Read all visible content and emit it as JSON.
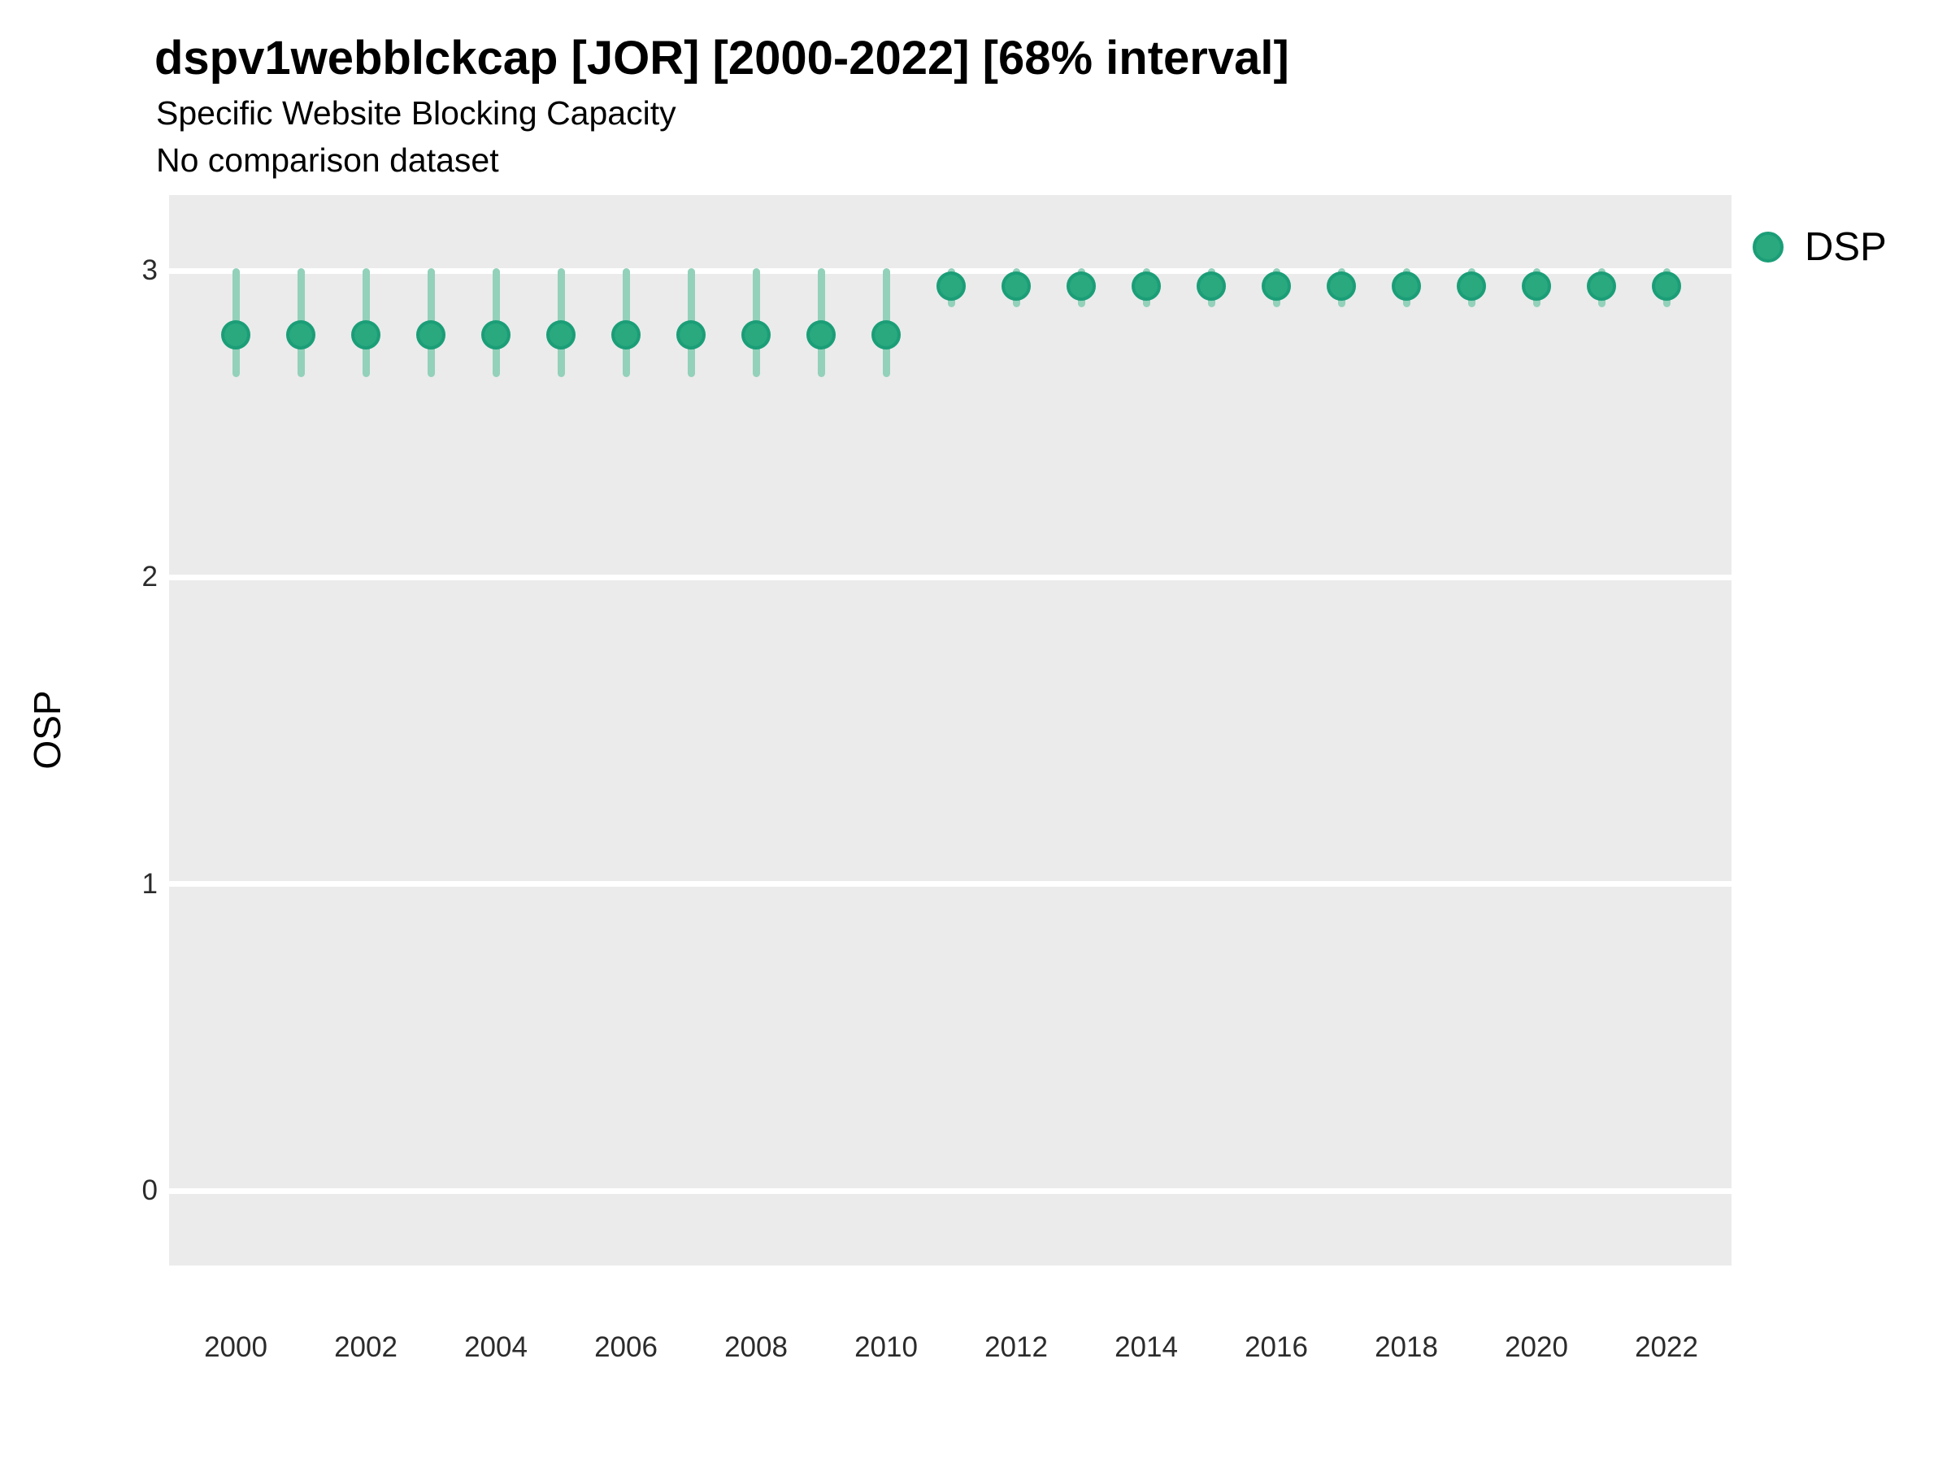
{
  "chart_data": {
    "type": "scatter",
    "subtype": "point-interval",
    "title": "dspv1webblckcap [JOR] [2000-2022] [68% interval]",
    "subtitle": "Specific Website Blocking Capacity",
    "note": "No comparison dataset",
    "xlabel": "",
    "ylabel": "OSP",
    "interval_level": "68%",
    "country": "JOR",
    "x_ticks": [
      2000,
      2002,
      2004,
      2006,
      2008,
      2010,
      2012,
      2014,
      2016,
      2018,
      2020,
      2022
    ],
    "y_ticks": [
      0,
      1,
      2,
      3
    ],
    "xlim": [
      1999,
      2023
    ],
    "ylim": [
      -0.25,
      3.25
    ],
    "grid": "horizontal-major-only",
    "legend_position": "right-top",
    "series": [
      {
        "name": "DSP",
        "point_color": "#2AA87E",
        "point_edge_color": "#1B9E77",
        "interval_color": "#93D1BA",
        "points": [
          {
            "year": 2000,
            "estimate": 2.79,
            "lower": 2.66,
            "upper": 3.0
          },
          {
            "year": 2001,
            "estimate": 2.79,
            "lower": 2.66,
            "upper": 3.0
          },
          {
            "year": 2002,
            "estimate": 2.79,
            "lower": 2.66,
            "upper": 3.0
          },
          {
            "year": 2003,
            "estimate": 2.79,
            "lower": 2.66,
            "upper": 3.0
          },
          {
            "year": 2004,
            "estimate": 2.79,
            "lower": 2.66,
            "upper": 3.0
          },
          {
            "year": 2005,
            "estimate": 2.79,
            "lower": 2.66,
            "upper": 3.0
          },
          {
            "year": 2006,
            "estimate": 2.79,
            "lower": 2.66,
            "upper": 3.0
          },
          {
            "year": 2007,
            "estimate": 2.79,
            "lower": 2.66,
            "upper": 3.0
          },
          {
            "year": 2008,
            "estimate": 2.79,
            "lower": 2.66,
            "upper": 3.0
          },
          {
            "year": 2009,
            "estimate": 2.79,
            "lower": 2.66,
            "upper": 3.0
          },
          {
            "year": 2010,
            "estimate": 2.79,
            "lower": 2.66,
            "upper": 3.0
          },
          {
            "year": 2011,
            "estimate": 2.95,
            "lower": 2.89,
            "upper": 3.0
          },
          {
            "year": 2012,
            "estimate": 2.95,
            "lower": 2.89,
            "upper": 3.0
          },
          {
            "year": 2013,
            "estimate": 2.95,
            "lower": 2.89,
            "upper": 3.0
          },
          {
            "year": 2014,
            "estimate": 2.95,
            "lower": 2.89,
            "upper": 3.0
          },
          {
            "year": 2015,
            "estimate": 2.95,
            "lower": 2.89,
            "upper": 3.0
          },
          {
            "year": 2016,
            "estimate": 2.95,
            "lower": 2.89,
            "upper": 3.0
          },
          {
            "year": 2017,
            "estimate": 2.95,
            "lower": 2.89,
            "upper": 3.0
          },
          {
            "year": 2018,
            "estimate": 2.95,
            "lower": 2.89,
            "upper": 3.0
          },
          {
            "year": 2019,
            "estimate": 2.95,
            "lower": 2.89,
            "upper": 3.0
          },
          {
            "year": 2020,
            "estimate": 2.95,
            "lower": 2.89,
            "upper": 3.0
          },
          {
            "year": 2021,
            "estimate": 2.95,
            "lower": 2.89,
            "upper": 3.0
          },
          {
            "year": 2022,
            "estimate": 2.95,
            "lower": 2.89,
            "upper": 3.0
          }
        ]
      }
    ]
  },
  "colors": {
    "panel_background": "#EBEBEB",
    "grid_line": "#FFFFFF",
    "figure_background": "#FFFFFF",
    "title_text": "#000000",
    "axis_text": "#2B2B2B"
  }
}
